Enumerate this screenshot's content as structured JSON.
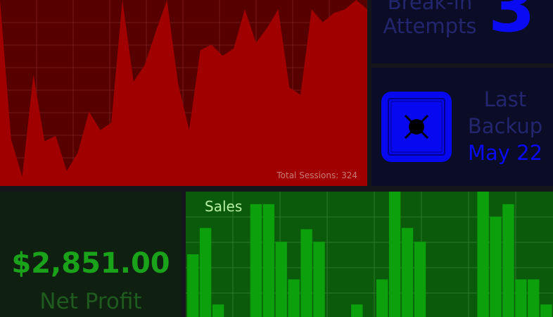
{
  "sessions": {
    "caption": "Total Sessions: 324",
    "colors": {
      "background": "#560000",
      "area": "#a00000",
      "grid": "#7a1a1a"
    },
    "chart_data": {
      "type": "area",
      "values": [
        100,
        25,
        5,
        60,
        24,
        27,
        8,
        18,
        40,
        30,
        34,
        100,
        56,
        65,
        83,
        100,
        55,
        30,
        73,
        76,
        70,
        74,
        95,
        77,
        85,
        95,
        53,
        49,
        95,
        88,
        93,
        95,
        100,
        95
      ]
    }
  },
  "breakin": {
    "label": "Break-in Attempts",
    "value": "3",
    "colors": {
      "label": "#23266f",
      "value": "#0a0af5"
    }
  },
  "backup": {
    "icon": "safe-icon",
    "label": "Last Backup",
    "date": "May 22"
  },
  "profit": {
    "value": "$2,851.00",
    "label": "Net Profit"
  },
  "sales": {
    "title": "Sales",
    "colors": {
      "background": "#0b5a0b",
      "bar": "#0ca00c",
      "grid": "#2a7a2a"
    },
    "chart_data": {
      "type": "bar",
      "values": [
        50,
        71,
        10,
        0,
        0,
        90,
        90,
        60,
        30,
        70,
        60,
        0,
        0,
        10,
        0,
        30,
        100,
        71,
        60,
        0,
        0,
        0,
        0,
        100,
        80,
        90,
        30,
        30,
        10
      ]
    }
  }
}
